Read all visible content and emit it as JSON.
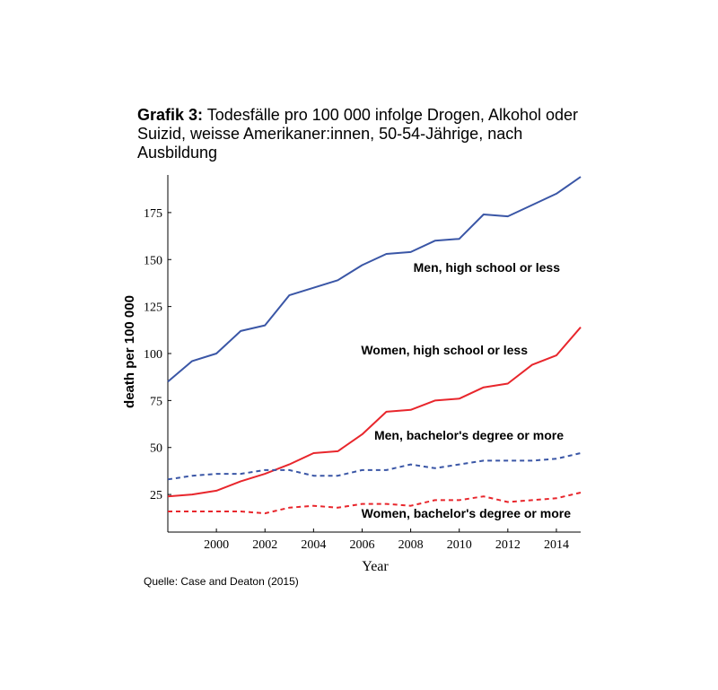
{
  "title": {
    "prefix": "Grafik 3:",
    "text": "Todesfälle pro 100 000 infolge Drogen, Alkohol oder Suizid, weisse Amerikaner:innen, 50-54-Jährige, nach Ausbildung"
  },
  "source": "Quelle: Case and Deaton (2015)",
  "chart_data": {
    "type": "line",
    "xlabel": "Year",
    "ylabel": "death per 100 000",
    "xlim": [
      1998,
      2015
    ],
    "ylim": [
      5,
      195
    ],
    "x_ticks": [
      2000,
      2002,
      2004,
      2006,
      2008,
      2010,
      2012,
      2014
    ],
    "y_ticks": [
      25,
      50,
      75,
      100,
      125,
      150,
      175
    ],
    "grid": false,
    "x": [
      1998,
      1999,
      2000,
      2001,
      2002,
      2003,
      2004,
      2005,
      2006,
      2007,
      2008,
      2009,
      2010,
      2011,
      2012,
      2013,
      2014,
      2015
    ],
    "series": [
      {
        "name": "Men, high school or less",
        "color": "#3a56a6",
        "style": "solid",
        "values": [
          85,
          96,
          100,
          112,
          115,
          131,
          135,
          139,
          147,
          153,
          154,
          160,
          161,
          174,
          173,
          179,
          185,
          194
        ]
      },
      {
        "name": "Women, high school or less",
        "color": "#e8262c",
        "style": "solid",
        "values": [
          24,
          25,
          27,
          32,
          36,
          41,
          47,
          48,
          57,
          69,
          70,
          75,
          76,
          82,
          84,
          94,
          99,
          114
        ]
      },
      {
        "name": "Men, bachelor's degree or more",
        "color": "#3a56a6",
        "style": "dashed",
        "values": [
          33,
          35,
          36,
          36,
          38,
          38,
          35,
          35,
          38,
          38,
          41,
          39,
          41,
          43,
          43,
          43,
          44,
          47
        ]
      },
      {
        "name": "Women, bachelor's degree or more",
        "color": "#e8262c",
        "style": "dashed",
        "values": [
          16,
          16,
          16,
          16,
          15,
          18,
          19,
          18,
          20,
          20,
          19,
          22,
          22,
          24,
          21,
          22,
          23,
          26
        ]
      }
    ]
  }
}
